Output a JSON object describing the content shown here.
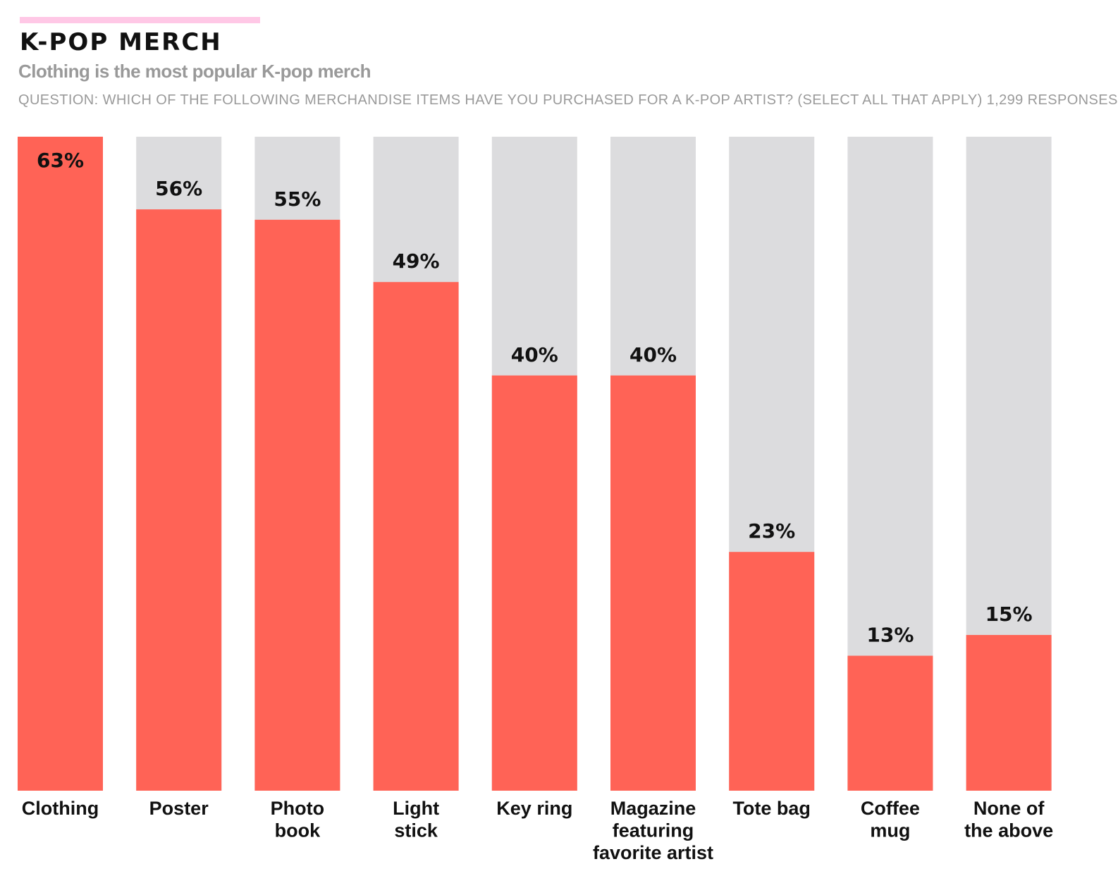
{
  "header": {
    "title": "K-POP MERCH",
    "subtitle": "Clothing is the most popular K-pop merch",
    "question": "QUESTION: WHICH OF THE FOLLOWING MERCHANDISE ITEMS HAVE YOU PURCHASED FOR A K-POP ARTIST? (SELECT ALL THAT APPLY) 1,299 RESPONSES"
  },
  "colors": {
    "accent": "#ffc8e6",
    "bar": "#ff6356",
    "track": "#dcdcde",
    "text": "#111111",
    "muted": "#999999"
  },
  "chart_data": {
    "type": "bar",
    "title": "K-POP MERCH",
    "subtitle": "Clothing is the most popular K-pop merch",
    "categories": [
      "Clothing",
      "Poster",
      "Photo book",
      "Light stick",
      "Key ring",
      "Magazine featuring favorite artist",
      "Tote bag",
      "Coffee mug",
      "None of the above"
    ],
    "category_lines": [
      [
        "Clothing"
      ],
      [
        "Poster"
      ],
      [
        "Photo",
        "book"
      ],
      [
        "Light",
        "stick"
      ],
      [
        "Key ring"
      ],
      [
        "Magazine",
        "featuring",
        "favorite artist"
      ],
      [
        "Tote bag"
      ],
      [
        "Coffee",
        "mug"
      ],
      [
        "None of",
        "the above"
      ]
    ],
    "values": [
      63,
      56,
      55,
      49,
      40,
      40,
      23,
      13,
      15
    ],
    "value_labels": [
      "63%",
      "56%",
      "55%",
      "49%",
      "40%",
      "40%",
      "23%",
      "13%",
      "15%"
    ],
    "unit": "%",
    "ylim": [
      0,
      63
    ],
    "grid": false,
    "xlabel": "",
    "ylabel": ""
  }
}
